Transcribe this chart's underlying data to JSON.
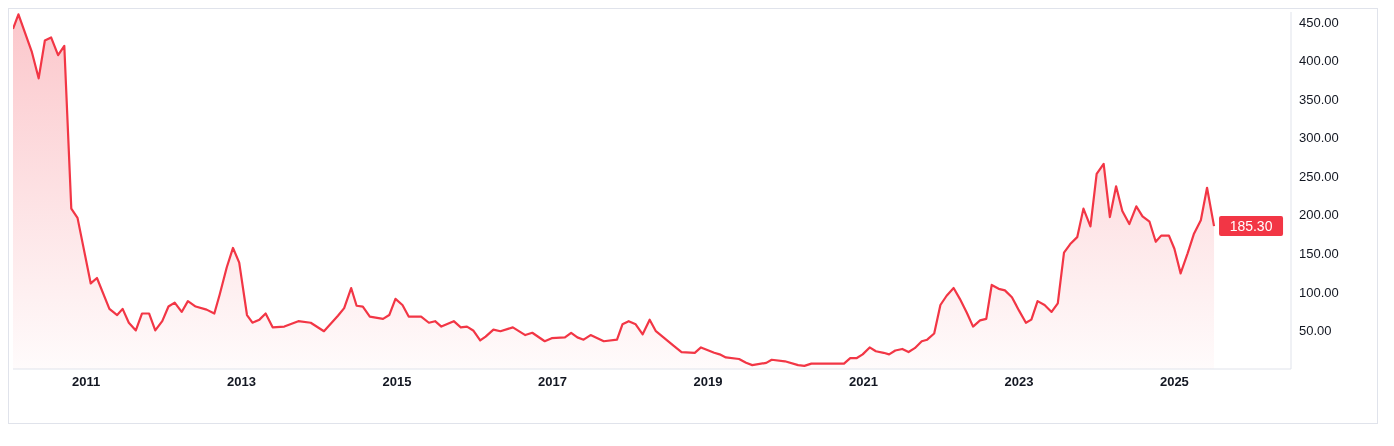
{
  "chart_data": {
    "type": "area",
    "color": "#f23645",
    "x": [
      2010.06,
      2010.13,
      2010.3,
      2010.39,
      2010.47,
      2010.55,
      2010.64,
      2010.72,
      2010.81,
      2010.89,
      2011.06,
      2011.14,
      2011.3,
      2011.4,
      2011.47,
      2011.55,
      2011.64,
      2011.72,
      2011.81,
      2011.89,
      2011.98,
      2012.06,
      2012.14,
      2012.23,
      2012.31,
      2012.41,
      2012.55,
      2012.65,
      2012.72,
      2012.81,
      2012.89,
      2012.97,
      2013.07,
      2013.14,
      2013.23,
      2013.31,
      2013.4,
      2013.55,
      2013.73,
      2013.89,
      2014.06,
      2014.24,
      2014.32,
      2014.41,
      2014.48,
      2014.56,
      2014.65,
      2014.82,
      2014.9,
      2014.98,
      2015.07,
      2015.15,
      2015.31,
      2015.41,
      2015.49,
      2015.57,
      2015.73,
      2015.82,
      2015.9,
      2015.98,
      2016.07,
      2016.14,
      2016.24,
      2016.33,
      2016.49,
      2016.65,
      2016.74,
      2016.9,
      2016.99,
      2017.16,
      2017.24,
      2017.32,
      2017.4,
      2017.49,
      2017.66,
      2017.83,
      2017.9,
      2017.98,
      2018.07,
      2018.16,
      2018.25,
      2018.33,
      2018.56,
      2018.66,
      2018.83,
      2018.91,
      2019.08,
      2019.15,
      2019.23,
      2019.4,
      2019.49,
      2019.57,
      2019.75,
      2019.82,
      2019.99,
      2020.16,
      2020.24,
      2020.33,
      2020.59,
      2020.75,
      2020.83,
      2020.91,
      2020.99,
      2021.08,
      2021.16,
      2021.26,
      2021.33,
      2021.41,
      2021.5,
      2021.58,
      2021.66,
      2021.75,
      2021.82,
      2021.91,
      2021.99,
      2022.07,
      2022.16,
      2022.24,
      2022.33,
      2022.41,
      2022.5,
      2022.58,
      2022.65,
      2022.74,
      2022.82,
      2022.91,
      2023.0,
      2023.09,
      2023.16,
      2023.24,
      2023.33,
      2023.42,
      2023.5,
      2023.58,
      2023.66,
      2023.75,
      2023.83,
      2023.92,
      2024.0,
      2024.09,
      2024.17,
      2024.25,
      2024.33,
      2024.42,
      2024.51,
      2024.59,
      2024.68,
      2024.76,
      2024.83,
      2024.93,
      2025.0,
      2025.08,
      2025.17,
      2025.25,
      2025.34,
      2025.42,
      2025.51
    ],
    "values": [
      441,
      460,
      412,
      377,
      426,
      430,
      407,
      419,
      208,
      196,
      111,
      118,
      78,
      70,
      78,
      60,
      50,
      72,
      72,
      50,
      62,
      81,
      86,
      74,
      88,
      81,
      77,
      72,
      97,
      132,
      157,
      138,
      70,
      60,
      64,
      72,
      54,
      55,
      62,
      60,
      49,
      69,
      79,
      105,
      82,
      81,
      68,
      65,
      70,
      91,
      83,
      68,
      68,
      60,
      62,
      55,
      62,
      54,
      55,
      50,
      37,
      42,
      51,
      49,
      54,
      44,
      47,
      36,
      40,
      41,
      47,
      41,
      38,
      44,
      36,
      38,
      58,
      62,
      58,
      45,
      64,
      49,
      30,
      22,
      21,
      28,
      21,
      19,
      15,
      13,
      8,
      5,
      8,
      12,
      10,
      5,
      4,
      7,
      7,
      7,
      14,
      14,
      19,
      28,
      23,
      21,
      19,
      24,
      26,
      22,
      27,
      36,
      38,
      46,
      83,
      95,
      105,
      91,
      73,
      55,
      63,
      65,
      109,
      104,
      102,
      93,
      76,
      60,
      64,
      88,
      83,
      74,
      85,
      151,
      162,
      171,
      208,
      185,
      253,
      266,
      197,
      237,
      205,
      188,
      211,
      198,
      191,
      165,
      173,
      173,
      156,
      124,
      150,
      175,
      193,
      235,
      185.3
    ],
    "xlim": [
      2010.06,
      2026.5
    ],
    "xticks": [
      2011,
      2013,
      2015,
      2017,
      2019,
      2021,
      2023,
      2025
    ],
    "ylim": [
      0,
      463
    ],
    "yticks": [
      {
        "value": 50,
        "label": "50.00"
      },
      {
        "value": 100,
        "label": "100.00"
      },
      {
        "value": 150,
        "label": "150.00"
      },
      {
        "value": 200,
        "label": "200.00"
      },
      {
        "value": 250,
        "label": "250.00"
      },
      {
        "value": 300,
        "label": "300.00"
      },
      {
        "value": 350,
        "label": "350.00"
      },
      {
        "value": 400,
        "label": "400.00"
      },
      {
        "value": 450,
        "label": "450.00"
      }
    ],
    "annotations": [
      {
        "text": "185.30",
        "x": 2025.51,
        "y": 185.3
      }
    ],
    "grid": false,
    "legend": false
  }
}
